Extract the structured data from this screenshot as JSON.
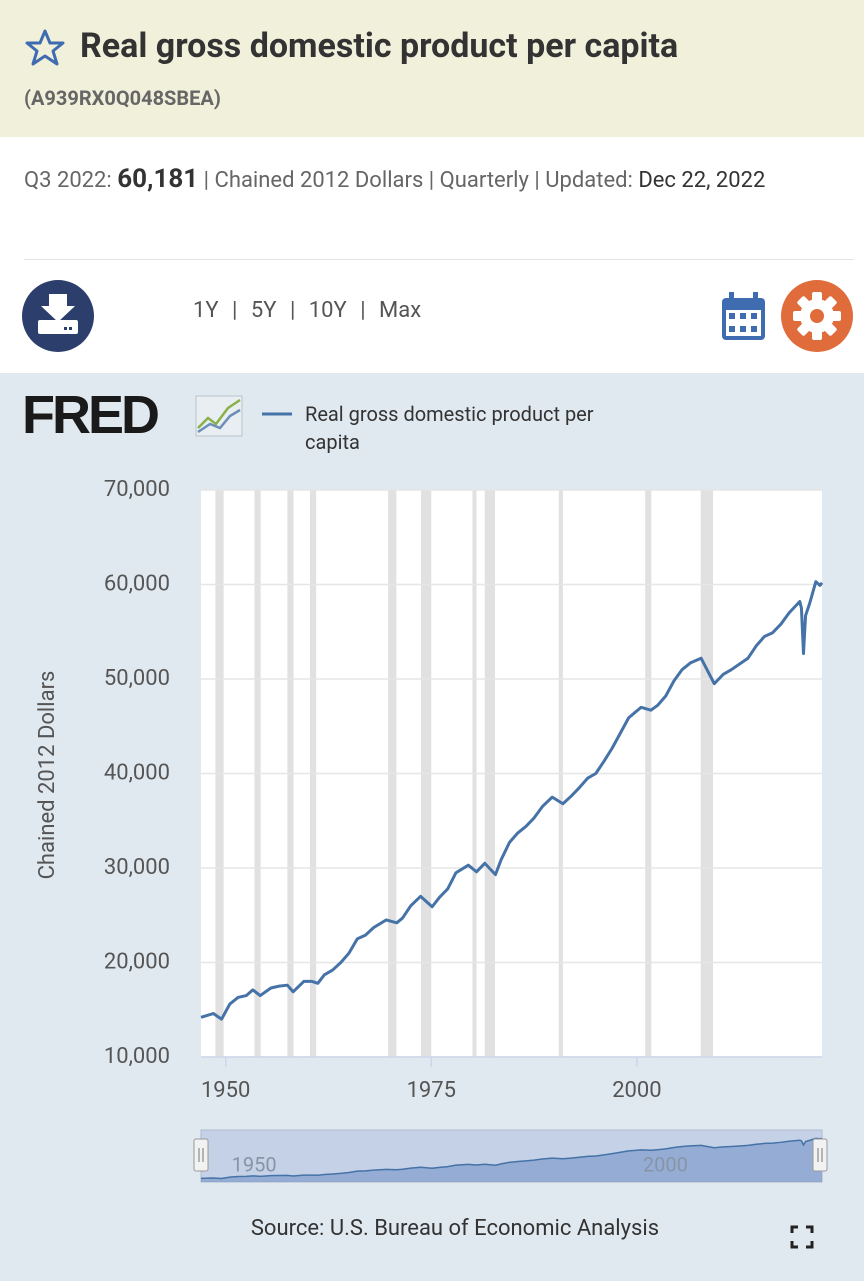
{
  "header": {
    "title": "Real gross domestic product per capita",
    "series_id": "(A939RX0Q048SBEA)"
  },
  "summary": {
    "period": "Q3 2022:",
    "value": "60,181",
    "separator": "|",
    "units": "Chained 2012 Dollars",
    "frequency": "Quarterly",
    "updated_label": "Updated:",
    "updated": "Dec 22, 2022"
  },
  "toolbar": {
    "ranges": [
      "1Y",
      "5Y",
      "10Y",
      "Max"
    ],
    "separator": "|"
  },
  "logo": "FRED",
  "source": "Source: U.S. Bureau of Economic Analysis",
  "chart_data": {
    "type": "line",
    "ylabel": "Chained 2012 Dollars",
    "x": [
      1947,
      1948.5,
      1949.5,
      1950.5,
      1951.5,
      1952.5,
      1953.3,
      1954.2,
      1955.5,
      1956.5,
      1957.5,
      1958.2,
      1959.5,
      1960.5,
      1961.2,
      1962,
      1963,
      1964,
      1965,
      1966,
      1967,
      1968,
      1969.5,
      1970.8,
      1971.5,
      1972.5,
      1973.7,
      1975.1,
      1976,
      1977,
      1978,
      1979.5,
      1980.5,
      1981.5,
      1982.8,
      1983.5,
      1984.5,
      1985.5,
      1986.5,
      1987.5,
      1988.5,
      1989.7,
      1991,
      1992,
      1993,
      1994,
      1995,
      1996,
      1997,
      1998,
      1999,
      2000.5,
      2001.7,
      2002.5,
      2003.5,
      2004.5,
      2005.5,
      2006.5,
      2007.8,
      2009.4,
      2010.5,
      2011.5,
      2012.5,
      2013.5,
      2014.5,
      2015.5,
      2016.5,
      2017.5,
      2018.5,
      2019.8,
      2020,
      2020.25,
      2020.5,
      2021,
      2021.75,
      2022,
      2022.25,
      2022.5
    ],
    "series": [
      {
        "name": "Real gross domestic product per capita",
        "color": "#4572a7",
        "values": [
          14200,
          14600,
          14000,
          15600,
          16300,
          16500,
          17100,
          16500,
          17300,
          17500,
          17600,
          16900,
          18000,
          18000,
          17800,
          18700,
          19200,
          20000,
          21000,
          22500,
          22900,
          23700,
          24500,
          24200,
          24700,
          26000,
          27000,
          25900,
          26900,
          27800,
          29500,
          30300,
          29600,
          30500,
          29300,
          30900,
          32700,
          33700,
          34400,
          35300,
          36500,
          37500,
          36800,
          37600,
          38500,
          39500,
          40000,
          41300,
          42700,
          44300,
          45900,
          47000,
          46700,
          47200,
          48200,
          49800,
          51000,
          51700,
          52200,
          49500,
          50500,
          51000,
          51600,
          52200,
          53500,
          54500,
          54900,
          55800,
          57000,
          58200,
          57500,
          52700,
          56700,
          58000,
          60300,
          60100,
          59900,
          60181
        ]
      }
    ],
    "xlim": [
      1947,
      2022.5
    ],
    "ylim": [
      10000,
      70000
    ],
    "xticks": [
      1950,
      1975,
      2000
    ],
    "yticks": [
      {
        "value": 10000,
        "label": "10,000"
      },
      {
        "value": 20000,
        "label": "20,000"
      },
      {
        "value": 30000,
        "label": "30,000"
      },
      {
        "value": 40000,
        "label": "40,000"
      },
      {
        "value": 50000,
        "label": "50,000"
      },
      {
        "value": 60000,
        "label": "60,000"
      },
      {
        "value": 70000,
        "label": "70,000"
      }
    ],
    "recessions": [
      [
        1948.75,
        1949.75
      ],
      [
        1953.5,
        1954.25
      ],
      [
        1957.5,
        1958.25
      ],
      [
        1960.25,
        1961
      ],
      [
        1969.75,
        1970.75
      ],
      [
        1973.75,
        1975
      ],
      [
        1980,
        1980.5
      ],
      [
        1981.5,
        1982.75
      ],
      [
        1990.5,
        1991
      ],
      [
        2001,
        2001.75
      ],
      [
        2007.75,
        2009.25
      ]
    ],
    "recession_color": "#e1e1e1",
    "grid": true
  }
}
